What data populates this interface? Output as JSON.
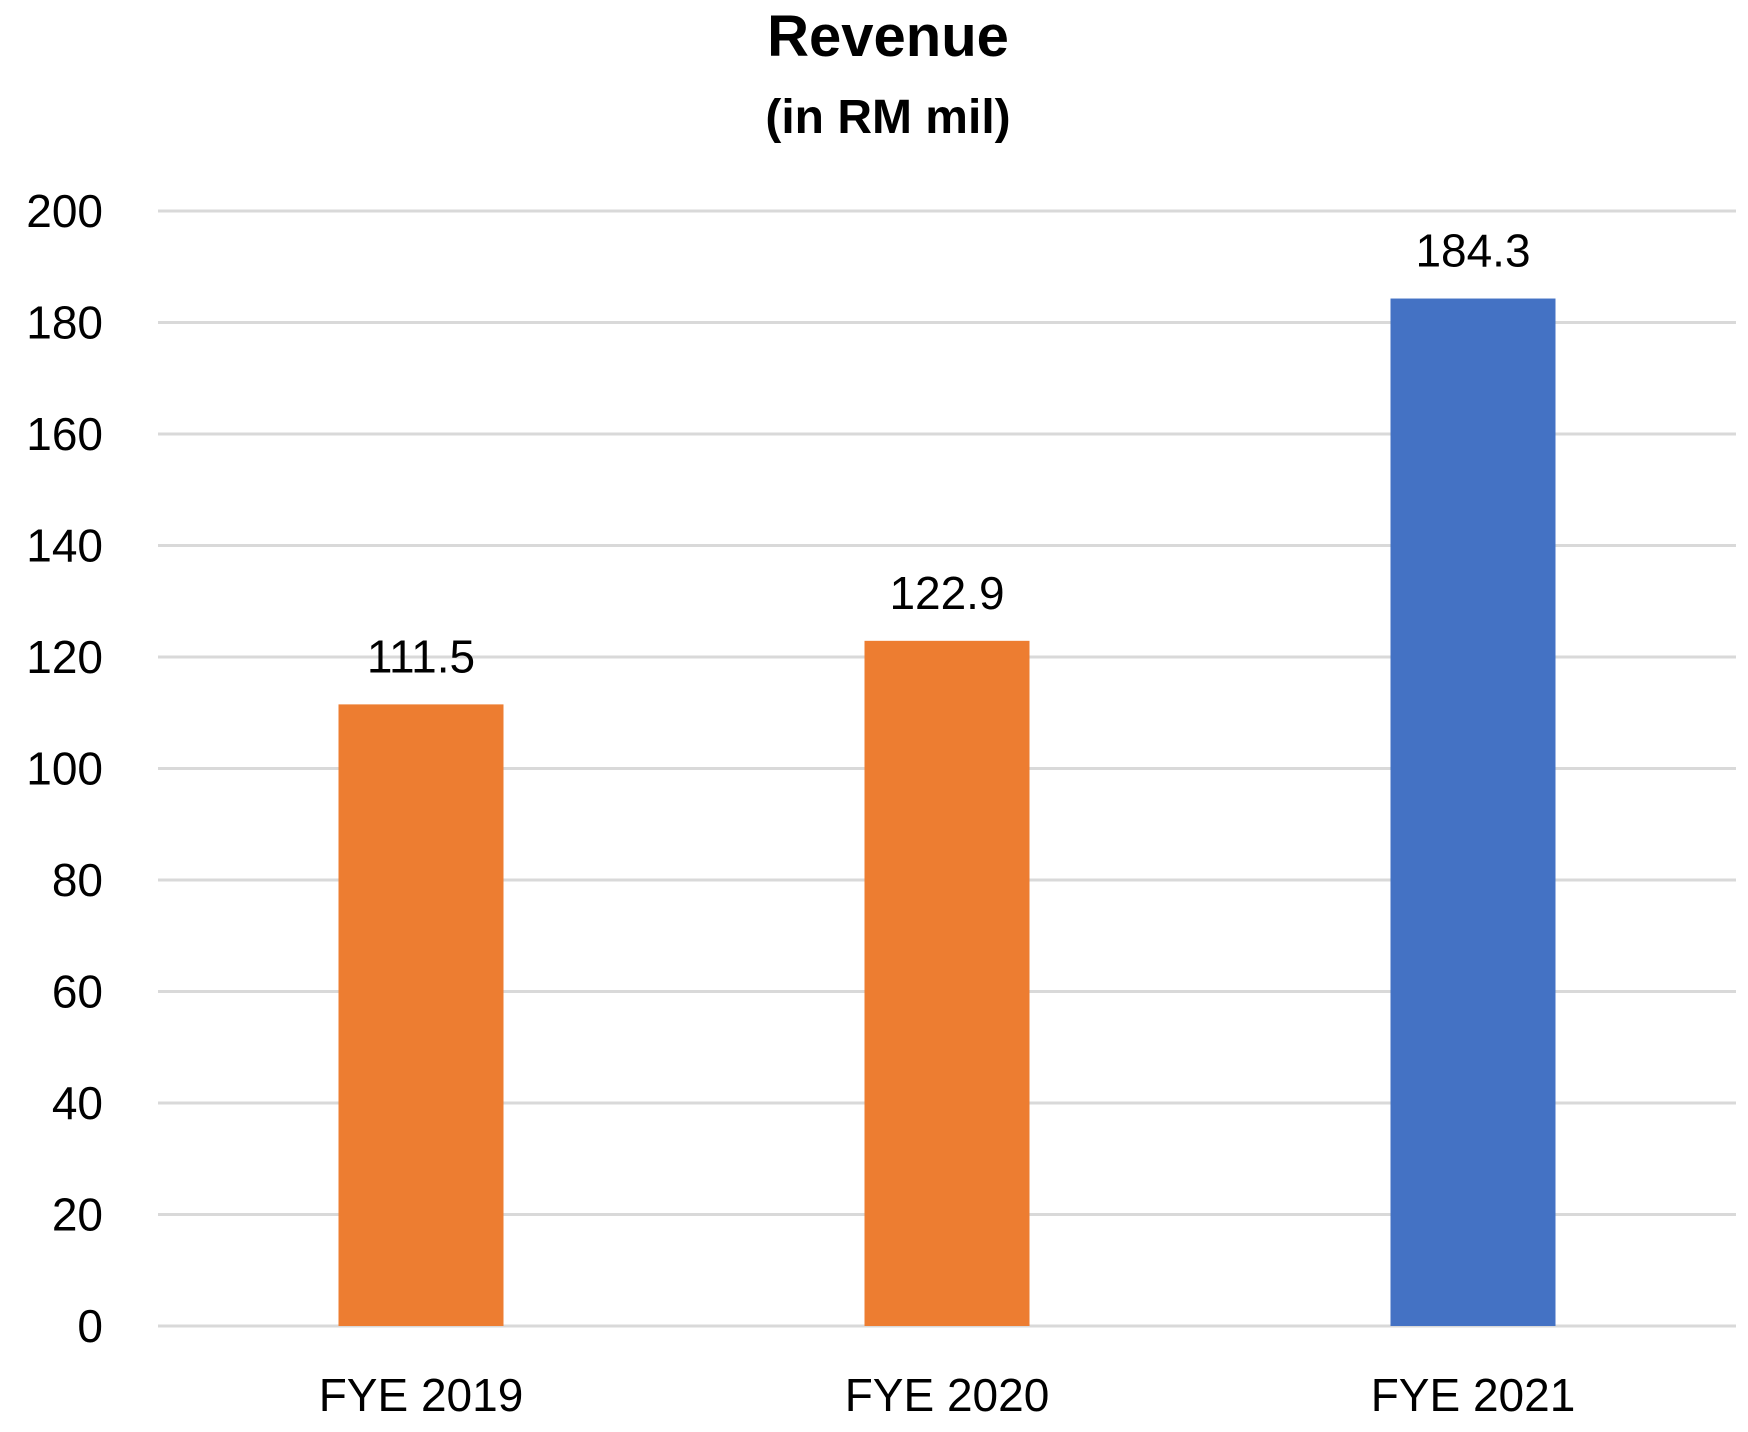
{
  "chart_data": {
    "type": "bar",
    "title": "Revenue",
    "subtitle": "(in RM mil)",
    "xlabel": "",
    "ylabel": "",
    "categories": [
      "FYE 2019",
      "FYE 2020",
      "FYE 2021"
    ],
    "values": [
      111.5,
      122.9,
      184.3
    ],
    "data_labels": [
      "111.5",
      "122.9",
      "184.3"
    ],
    "bar_colors": [
      "#ED7D31",
      "#ED7D31",
      "#4472C4"
    ],
    "ylim": [
      0,
      200
    ],
    "yticks": [
      0,
      20,
      40,
      60,
      80,
      100,
      120,
      140,
      160,
      180,
      200
    ],
    "grid": true,
    "grid_color": "#D9D9D9",
    "legend": "none"
  }
}
